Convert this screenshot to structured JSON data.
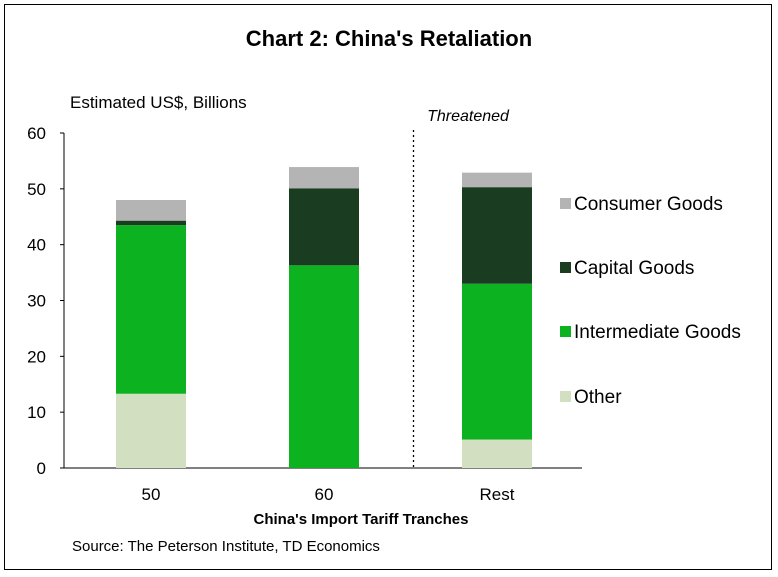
{
  "chart_data": {
    "type": "stacked-bar",
    "title": "Chart 2: China's Retaliation",
    "ylabel": "Estimated US$, Billions",
    "xlabel": "China's Import Tariff Tranches",
    "ylim": [
      0,
      60
    ],
    "yticks": [
      0,
      10,
      20,
      30,
      40,
      50,
      60
    ],
    "categories": [
      "50",
      "60",
      "Rest"
    ],
    "annotation": "Threatened",
    "divider_after_category": "60",
    "legend_position": "right",
    "series": [
      {
        "name": "Other",
        "color": "#d3dfc1",
        "values": [
          13.3,
          0,
          5.1
        ]
      },
      {
        "name": "Intermediate Goods",
        "color": "#0cb21f",
        "values": [
          30.2,
          36.3,
          27.9
        ]
      },
      {
        "name": "Capital Goods",
        "color": "#1a3d22",
        "values": [
          0.8,
          13.8,
          17.3
        ]
      },
      {
        "name": "Consumer Goods",
        "color": "#b4b4b4",
        "values": [
          3.7,
          3.8,
          2.6
        ]
      }
    ],
    "legend_order": [
      "Consumer Goods",
      "Capital Goods",
      "Intermediate Goods",
      "Other"
    ]
  },
  "source": "Source: The Peterson Institute, TD Economics"
}
